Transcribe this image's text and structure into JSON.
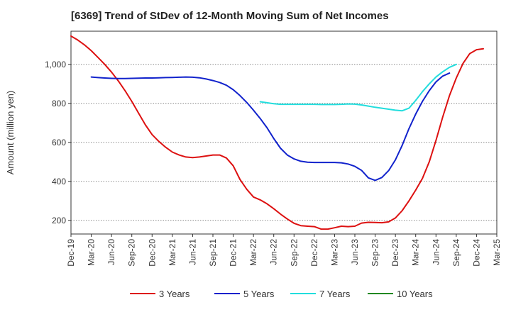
{
  "chart_data": {
    "type": "line",
    "title": "[6369]  Trend of StDev of 12-Month Moving Sum of Net Incomes",
    "xlabel": "",
    "ylabel": "Amount (million yen)",
    "x_tick_labels": [
      "Dec-19",
      "Mar-20",
      "Jun-20",
      "Sep-20",
      "Dec-20",
      "Mar-21",
      "Jun-21",
      "Sep-21",
      "Dec-21",
      "Mar-22",
      "Jun-22",
      "Sep-22",
      "Dec-22",
      "Mar-23",
      "Jun-23",
      "Sep-23",
      "Dec-23",
      "Mar-24",
      "Jun-24",
      "Sep-24",
      "Dec-24",
      "Mar-25"
    ],
    "y_ticks": [
      200,
      400,
      600,
      800,
      1000
    ],
    "y_tick_labels": [
      "200",
      "400",
      "600",
      "800",
      "1,000"
    ],
    "ylim": [
      130,
      1170
    ],
    "grid": "horizontal dotted",
    "legend_position": "bottom",
    "series": [
      {
        "name": "3 Years",
        "color": "#dd1111",
        "start_index": 0,
        "values": [
          1145,
          1125,
          1100,
          1070,
          1035,
          1000,
          960,
          915,
          865,
          810,
          750,
          690,
          640,
          605,
          575,
          550,
          535,
          525,
          522,
          525,
          530,
          535,
          535,
          520,
          480,
          410,
          360,
          320,
          305,
          285,
          260,
          232,
          207,
          185,
          173,
          170,
          168,
          155,
          155,
          162,
          170,
          168,
          170,
          186,
          190,
          189,
          188,
          192,
          212,
          250,
          300,
          355,
          415,
          500,
          610,
          730,
          840,
          930,
          1005,
          1055,
          1075,
          1080
        ]
      },
      {
        "name": "5 Years",
        "color": "#1122cc",
        "start_index": 3,
        "values": [
          935,
          932,
          930,
          928,
          927,
          927,
          928,
          929,
          930,
          930,
          931,
          932,
          933,
          934,
          935,
          934,
          931,
          925,
          917,
          907,
          893,
          870,
          840,
          805,
          765,
          722,
          675,
          620,
          570,
          535,
          515,
          503,
          498,
          497,
          497,
          497,
          497,
          495,
          489,
          477,
          456,
          418,
          405,
          420,
          455,
          510,
          585,
          670,
          745,
          810,
          865,
          910,
          940,
          955
        ]
      },
      {
        "name": "7 Years",
        "color": "#22dddd",
        "start_index": 28,
        "values": [
          808,
          803,
          798,
          795,
          795,
          795,
          795,
          795,
          795,
          794,
          794,
          794,
          795,
          797,
          796,
          792,
          786,
          780,
          775,
          770,
          765,
          762,
          775,
          815,
          860,
          900,
          935,
          962,
          985,
          1000
        ]
      },
      {
        "name": "10 Years",
        "color": "#228822",
        "start_index": 0,
        "values": []
      }
    ]
  }
}
